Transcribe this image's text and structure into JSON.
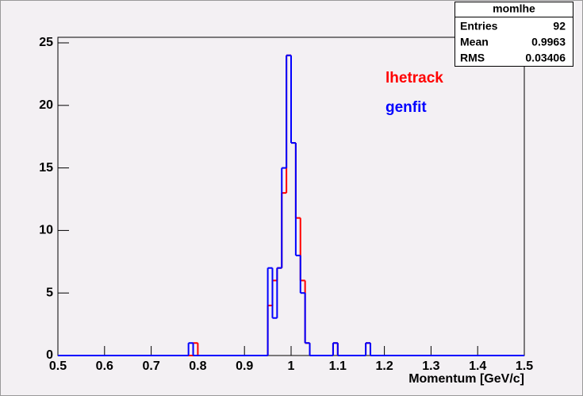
{
  "chart_data": {
    "type": "histogram",
    "bins": [
      0.5,
      0.78,
      0.79,
      0.8,
      0.95,
      0.96,
      0.97,
      0.98,
      0.99,
      1.0,
      1.01,
      1.02,
      1.03,
      1.04,
      1.09,
      1.1,
      1.16,
      1.17,
      1.5
    ],
    "series": [
      {
        "name": "lhetrack",
        "color": "#ff0000",
        "values": [
          0,
          0,
          1,
          0,
          4,
          6,
          7,
          13,
          24,
          17,
          11,
          6,
          1,
          0,
          1,
          0,
          1,
          0
        ]
      },
      {
        "name": "genfit",
        "color": "#0000ff",
        "values": [
          0,
          1,
          0,
          0,
          7,
          3,
          7,
          15,
          24,
          17,
          8,
          5,
          1,
          0,
          1,
          0,
          1,
          0
        ]
      }
    ],
    "x_label": "Momentum [GeV/c]",
    "xlim": [
      0.5,
      1.5
    ],
    "xticks": [
      0.5,
      0.6,
      0.7,
      0.8,
      0.9,
      1,
      1.1,
      1.2,
      1.3,
      1.4,
      1.5
    ],
    "ylim": [
      0,
      25
    ],
    "yticks": [
      0,
      5,
      10,
      15,
      20,
      25
    ],
    "stats": {
      "title": "momlhe",
      "rows": [
        [
          "Entries",
          "92"
        ],
        [
          "Mean",
          "0.9963"
        ],
        [
          "RMS",
          "0.03406"
        ]
      ]
    }
  }
}
